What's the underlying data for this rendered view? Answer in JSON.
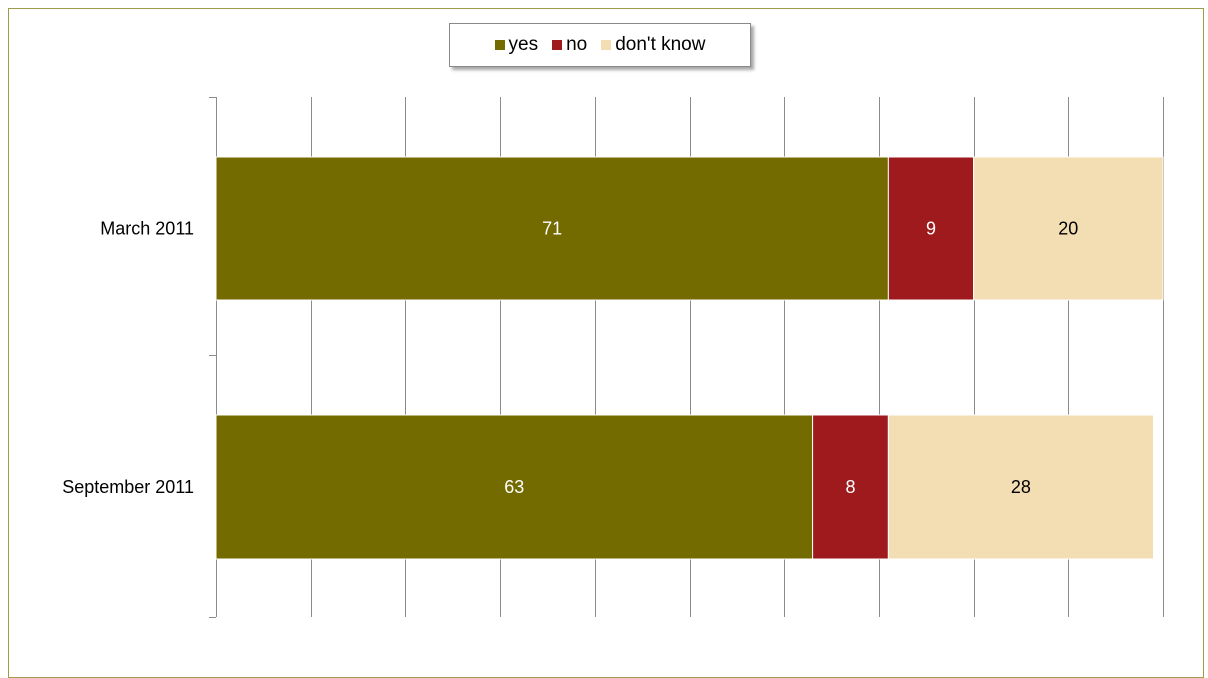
{
  "chart_data": {
    "type": "bar",
    "orientation": "horizontal",
    "stacked": true,
    "categories": [
      "March 2011",
      "September 2011"
    ],
    "series": [
      {
        "name": "yes",
        "values": [
          71,
          63
        ],
        "color": "#736a00",
        "label_color": "#ffffff"
      },
      {
        "name": "no",
        "values": [
          9,
          8
        ],
        "color": "#9e1a1c",
        "label_color": "#ffffff"
      },
      {
        "name": "don't know",
        "values": [
          20,
          28
        ],
        "color": "#f3deb4",
        "label_color": "#000000"
      }
    ],
    "xlim": [
      0,
      100
    ],
    "grid": true,
    "legend_position": "top-center",
    "title": "",
    "xlabel": "",
    "ylabel": ""
  }
}
